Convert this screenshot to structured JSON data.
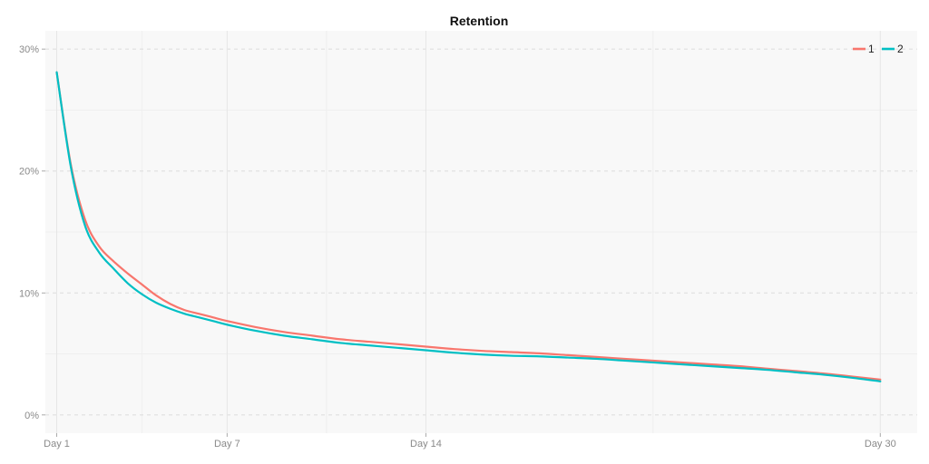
{
  "chart_data": {
    "type": "line",
    "title": "Retention",
    "xlabel": "",
    "ylabel": "",
    "x_ticks": [
      {
        "day": 1,
        "label": "Day 1"
      },
      {
        "day": 7,
        "label": "Day 7"
      },
      {
        "day": 14,
        "label": "Day 14"
      },
      {
        "day": 30,
        "label": "Day 30"
      }
    ],
    "y_ticks": [
      {
        "value": 0,
        "label": "0%"
      },
      {
        "value": 10,
        "label": "10%"
      },
      {
        "value": 20,
        "label": "20%"
      },
      {
        "value": 30,
        "label": "30%"
      }
    ],
    "xlim": [
      0.6,
      31.3
    ],
    "ylim": [
      -1.5,
      31.5
    ],
    "grid": true,
    "legend_position": "top-right",
    "series": [
      {
        "name": "1",
        "color": "#F8766D",
        "x": [
          1,
          1.5,
          2,
          2.5,
          3,
          3.5,
          4,
          4.5,
          5,
          5.5,
          6,
          6.5,
          7,
          8,
          9,
          10,
          11,
          12,
          13,
          14,
          15,
          16,
          17,
          18,
          19,
          20,
          21,
          22,
          23,
          24,
          25,
          26,
          27,
          28,
          29,
          30
        ],
        "values": [
          28.1,
          20.5,
          16.0,
          13.8,
          12.6,
          11.6,
          10.7,
          9.8,
          9.1,
          8.6,
          8.3,
          8.0,
          7.7,
          7.2,
          6.8,
          6.5,
          6.2,
          6.0,
          5.8,
          5.6,
          5.4,
          5.25,
          5.15,
          5.05,
          4.9,
          4.75,
          4.6,
          4.45,
          4.3,
          4.15,
          4.0,
          3.8,
          3.6,
          3.4,
          3.15,
          2.9
        ]
      },
      {
        "name": "2",
        "color": "#00BFC4",
        "x": [
          1,
          1.5,
          2,
          2.5,
          3,
          3.5,
          4,
          4.5,
          5,
          5.5,
          6,
          6.5,
          7,
          8,
          9,
          10,
          11,
          12,
          13,
          14,
          15,
          16,
          17,
          18,
          19,
          20,
          21,
          22,
          23,
          24,
          25,
          26,
          27,
          28,
          29,
          30
        ],
        "values": [
          28.1,
          20.3,
          15.5,
          13.3,
          12.0,
          10.8,
          9.9,
          9.2,
          8.7,
          8.3,
          8.0,
          7.7,
          7.4,
          6.9,
          6.5,
          6.2,
          5.9,
          5.7,
          5.5,
          5.3,
          5.1,
          4.95,
          4.85,
          4.8,
          4.7,
          4.6,
          4.45,
          4.3,
          4.15,
          4.0,
          3.85,
          3.7,
          3.5,
          3.3,
          3.05,
          2.75
        ]
      }
    ]
  }
}
